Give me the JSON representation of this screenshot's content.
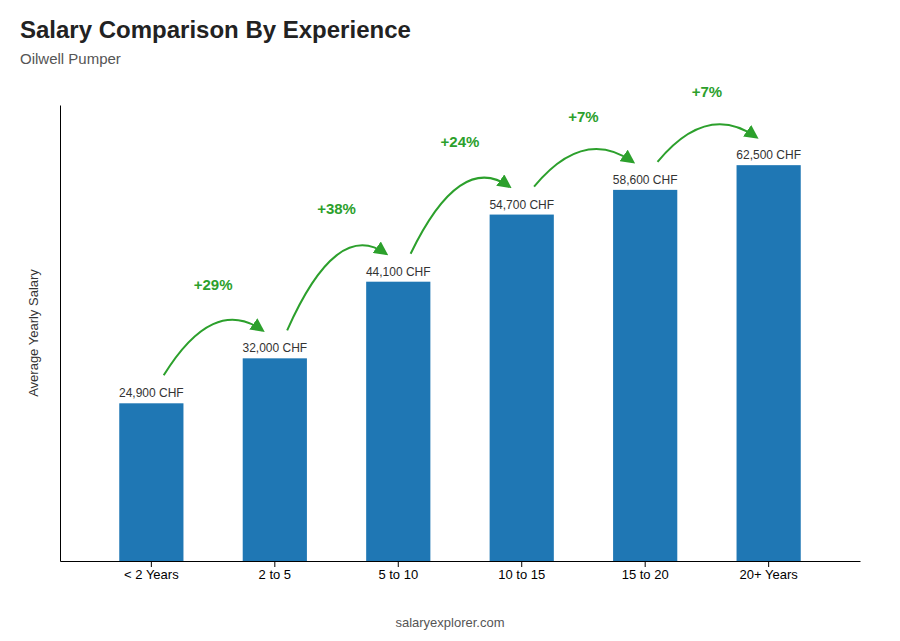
{
  "chart_data": {
    "type": "bar",
    "title": "Salary Comparison By Experience",
    "subtitle": "Oilwell Pumper",
    "categories": [
      "< 2 Years",
      "2 to 5",
      "5 to 10",
      "10 to 15",
      "15 to 20",
      "20+ Years"
    ],
    "values": [
      24900,
      32000,
      44100,
      54700,
      58600,
      62500
    ],
    "value_labels": [
      "24,900 CHF",
      "32,000 CHF",
      "44,100 CHF",
      "54,700 CHF",
      "58,600 CHF",
      "62,500 CHF"
    ],
    "data_labels": true,
    "ylim": [
      0,
      72000
    ],
    "tick_labels": "x",
    "y_label": "Average Yearly Salary",
    "annotations": [
      "+29%",
      "+38%",
      "+24%",
      "+7%",
      "+7%"
    ],
    "source": "salaryexplorer.com"
  }
}
